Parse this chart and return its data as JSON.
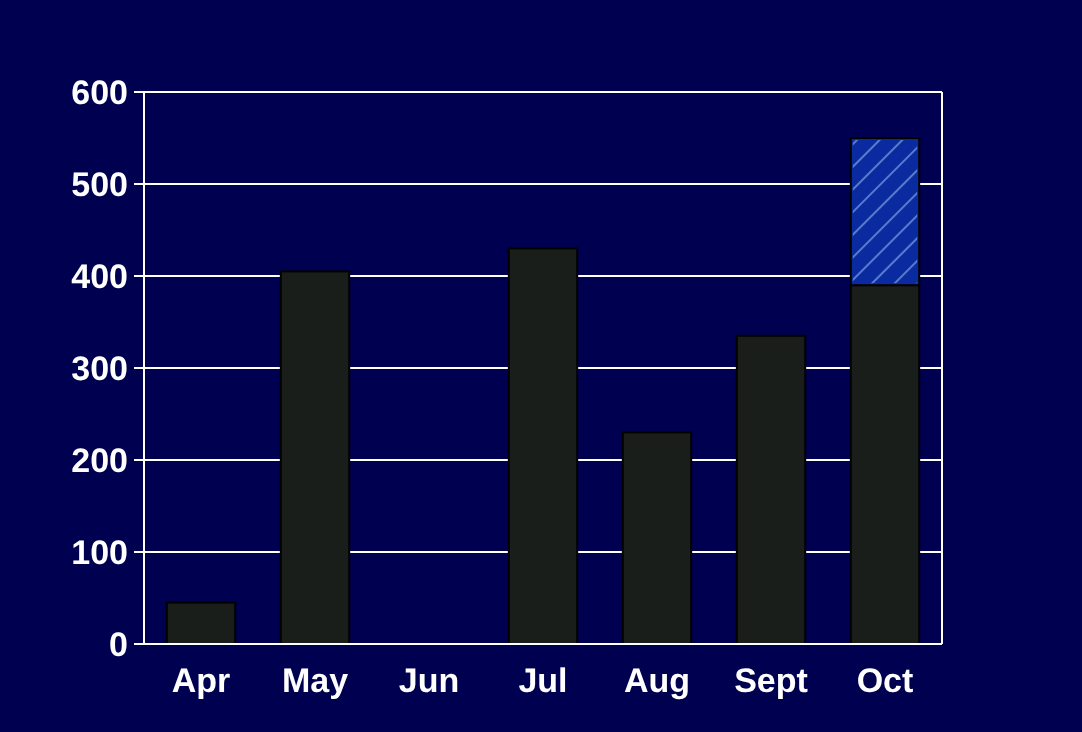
{
  "chart_data": {
    "type": "bar",
    "stacked": true,
    "categories": [
      "Apr",
      "May",
      "Jun",
      "Jul",
      "Aug",
      "Sept",
      "Oct"
    ],
    "series": [
      {
        "color": "#1a1e1a",
        "values": [
          45,
          405,
          null,
          430,
          230,
          335,
          390
        ]
      },
      {
        "color": "#0a2aa0",
        "values": [
          null,
          null,
          null,
          null,
          null,
          null,
          160
        ]
      }
    ],
    "ylim": [
      0,
      600
    ],
    "yticks": [
      0,
      100,
      200,
      300,
      400,
      500,
      600
    ],
    "grid": "y"
  }
}
